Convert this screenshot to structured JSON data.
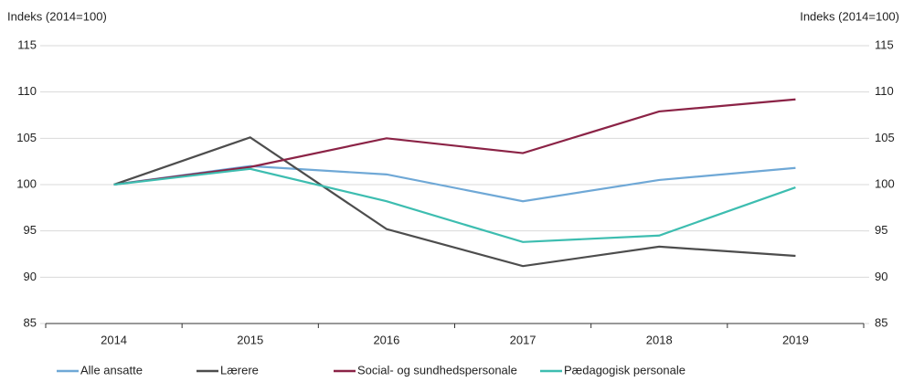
{
  "chart_data": {
    "type": "line",
    "ylabel": "Indeks (2014=100)",
    "y2label": "Indeks (2014=100)",
    "categories": [
      "2014",
      "2015",
      "2016",
      "2017",
      "2018",
      "2019"
    ],
    "series": [
      {
        "name": "Alle ansatte",
        "color": "#6fa8d6",
        "values": [
          100,
          102,
          101.1,
          98.2,
          100.5,
          101.8
        ]
      },
      {
        "name": "Lærere",
        "color": "#4d4d4d",
        "values": [
          100,
          105.1,
          95.2,
          91.2,
          93.3,
          92.3
        ]
      },
      {
        "name": "Social- og sundhedspersonale",
        "color": "#8b2346",
        "values": [
          100,
          101.9,
          105,
          103.4,
          107.9,
          109.2
        ]
      },
      {
        "name": "Pædagogisk personale",
        "color": "#3dbdb0",
        "values": [
          100,
          101.7,
          98.2,
          93.8,
          94.5,
          99.7
        ]
      }
    ],
    "ylim": [
      85,
      115
    ],
    "yticks": [
      85,
      90,
      95,
      100,
      105,
      110,
      115
    ],
    "y2lim": [
      85,
      115
    ],
    "y2ticks": [
      85,
      90,
      95,
      100,
      105,
      110,
      115
    ],
    "grid": true,
    "legend": "bottom"
  }
}
